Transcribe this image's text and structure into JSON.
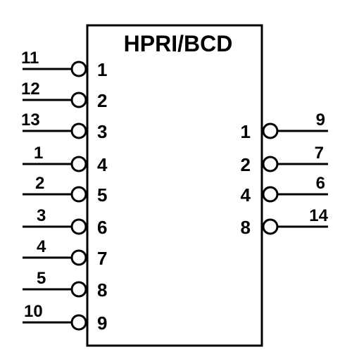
{
  "chip": {
    "title": "HPRI/BCD",
    "inputs": [
      {
        "inside": "1",
        "outside": "11"
      },
      {
        "inside": "2",
        "outside": "12"
      },
      {
        "inside": "3",
        "outside": "13"
      },
      {
        "inside": "4",
        "outside": "1"
      },
      {
        "inside": "5",
        "outside": "2"
      },
      {
        "inside": "6",
        "outside": "3"
      },
      {
        "inside": "7",
        "outside": "4"
      },
      {
        "inside": "8",
        "outside": "5"
      },
      {
        "inside": "9",
        "outside": "10"
      }
    ],
    "outputs": [
      {
        "inside": "1",
        "outside": "9"
      },
      {
        "inside": "2",
        "outside": "7"
      },
      {
        "inside": "4",
        "outside": "6"
      },
      {
        "inside": "8",
        "outside": "14"
      }
    ]
  }
}
